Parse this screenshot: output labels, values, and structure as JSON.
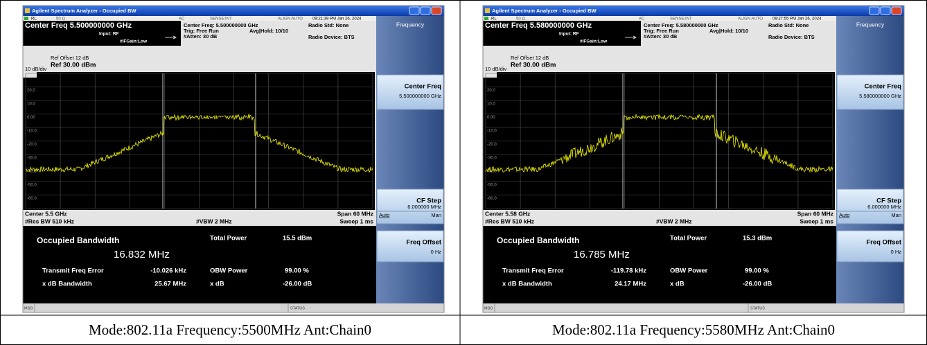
{
  "panels": [
    {
      "window_title": "Agilent Spectrum Analyzer - Occupied BW",
      "status": {
        "rl": "RL",
        "impedance": "50 Ω",
        "coupling": "AC",
        "sense": "SENSE:INT",
        "align": "ALIGN AUTO",
        "time": "09:21:39 PM Jan 26, 2024"
      },
      "center_freq": "Center Freq 5.500000000 GHz",
      "input": "Input: RF",
      "if_gain": "#IFGain:Low",
      "settings": [
        "Center Freq: 5.500000000 GHz",
        "Trig: Free Run",
        "#Atten: 30 dB"
      ],
      "avg_hold": "Avg|Hold: 10/10",
      "radio_std": "Radio Std: None",
      "radio_device": "Radio Device: BTS",
      "menu_title": "Frequency",
      "ref_offset": "Ref Offset 12 dB",
      "scale": "10 dB/div",
      "ref_level": "Ref 30.00 dBm",
      "log": "Log",
      "y_labels": [
        "20.0",
        "10.0",
        "0.00",
        "-10.0",
        "-20.0",
        "-30.0",
        "-40.0",
        "-50.0",
        "-60.0"
      ],
      "center": "Center 5.5 GHz",
      "res_bw": "#Res BW 510 kHz",
      "vbw": "#VBW 2 MHz",
      "span": "Span 60 MHz",
      "sweep": "Sweep 1 ms",
      "results": {
        "occupied_bandwidth_label": "Occupied Bandwidth",
        "occupied_bandwidth": "16.832 MHz",
        "total_power_label": "Total Power",
        "total_power": "15.5 dBm",
        "freq_error_label": "Transmit Freq Error",
        "freq_error": "-10.026 kHz",
        "obw_power_label": "OBW Power",
        "obw_power": "99.00 %",
        "xdb_bw_label": "x dB Bandwidth",
        "xdb_bw": "25.67 MHz",
        "xdb_label": "x dB",
        "xdb": "-26.00 dB"
      },
      "softkeys": [
        {
          "label": "Center Freq",
          "value": "5.500000000 GHz"
        },
        {
          "label": "CF Step",
          "value": "6.000000 MHz",
          "options": [
            "Auto",
            "Man"
          ]
        },
        {
          "label": "Freq Offset",
          "value": "0 Hz"
        }
      ],
      "msg": "MSG",
      "status_label": "STATUS"
    },
    {
      "window_title": "Agilent Spectrum Analyzer - Occupied BW",
      "status": {
        "rl": "RL",
        "impedance": "50 Ω",
        "coupling": "AC",
        "sense": "SENSE:INT",
        "align": "ALIGN AUTO",
        "time": "09:27:55 PM Jan 26, 2024"
      },
      "center_freq": "Center Freq 5.580000000 GHz",
      "input": "Input: RF",
      "if_gain": "#IFGain:Low",
      "settings": [
        "Center Freq: 5.580000000 GHz",
        "Trig: Free Run",
        "#Atten: 30 dB"
      ],
      "avg_hold": "Avg|Hold: 10/10",
      "radio_std": "Radio Std: None",
      "radio_device": "Radio Device: BTS",
      "menu_title": "Frequency",
      "ref_offset": "Ref Offset 12 dB",
      "scale": "10 dB/div",
      "ref_level": "Ref 30.00 dBm",
      "log": "Log",
      "y_labels": [
        "20.0",
        "10.0",
        "0.00",
        "-10.0",
        "-20.0",
        "-30.0",
        "-40.0",
        "-50.0",
        "-60.0"
      ],
      "center": "Center 5.58 GHz",
      "res_bw": "#Res BW 510 kHz",
      "vbw": "#VBW 2 MHz",
      "span": "Span 60 MHz",
      "sweep": "Sweep 1 ms",
      "results": {
        "occupied_bandwidth_label": "Occupied Bandwidth",
        "occupied_bandwidth": "16.785 MHz",
        "total_power_label": "Total Power",
        "total_power": "15.3 dBm",
        "freq_error_label": "Transmit Freq Error",
        "freq_error": "-119.78 kHz",
        "obw_power_label": "OBW Power",
        "obw_power": "99.00 %",
        "xdb_bw_label": "x dB Bandwidth",
        "xdb_bw": "24.17 MHz",
        "xdb_label": "x dB",
        "xdb": "-26.00 dB"
      },
      "softkeys": [
        {
          "label": "Center Freq",
          "value": "5.580000000 GHz"
        },
        {
          "label": "CF Step",
          "value": "6.000000 MHz",
          "options": [
            "Auto",
            "Man"
          ]
        },
        {
          "label": "Freq Offset",
          "value": "0 Hz"
        }
      ],
      "msg": "MSG",
      "status_label": "STATUS"
    }
  ],
  "captions": [
    "Mode:802.11a Frequency:5500MHz Ant:Chain0",
    "Mode:802.11a Frequency:5580MHz Ant:Chain0"
  ]
}
